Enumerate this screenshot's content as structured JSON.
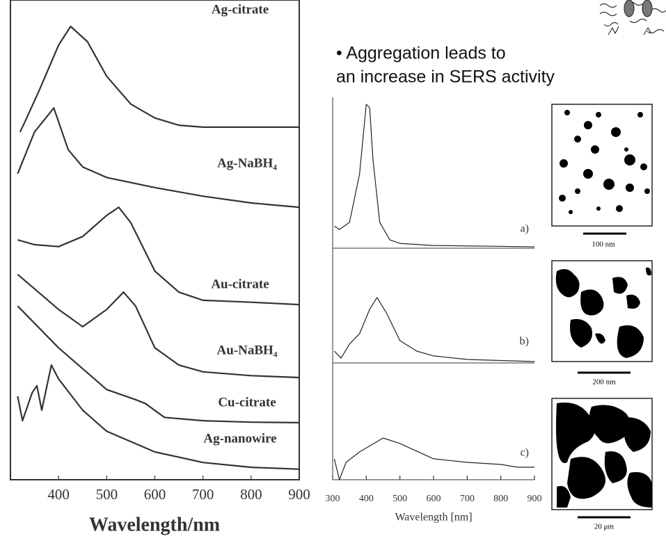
{
  "chart_data": [
    {
      "type": "line",
      "x_label": "Wavelength/nm",
      "color": "#333333",
      "xlim": [
        300,
        900
      ],
      "xticks": [
        400,
        500,
        600,
        700,
        800,
        900
      ],
      "ylim": [
        0,
        100
      ],
      "series": [
        {
          "name": "Ag-citrate",
          "x": [
            320,
            330,
            360,
            400,
            425,
            460,
            500,
            550,
            600,
            650,
            700,
            800,
            900
          ],
          "values": [
            72.5,
            74.6,
            81.2,
            90.6,
            94.5,
            91.3,
            84.1,
            78.3,
            75.4,
            73.9,
            73.5,
            73.5,
            73.5
          ]
        },
        {
          "name": "Ag-NaBH₄",
          "x": [
            315,
            350,
            390,
            420,
            450,
            500,
            600,
            700,
            800,
            900
          ],
          "values": [
            63.8,
            72.5,
            77.5,
            68.8,
            65.2,
            63.0,
            60.9,
            59.1,
            57.7,
            56.8
          ]
        },
        {
          "name": "Au-citrate",
          "x": [
            315,
            350,
            400,
            450,
            500,
            525,
            550,
            600,
            650,
            700,
            800,
            900
          ],
          "values": [
            50.0,
            49.0,
            48.6,
            50.7,
            55.1,
            56.8,
            53.6,
            43.5,
            39.1,
            37.4,
            37.0,
            36.5
          ]
        },
        {
          "name": "Au-NaBH₄",
          "x": [
            315,
            400,
            450,
            500,
            535,
            560,
            600,
            650,
            700,
            800,
            900
          ],
          "values": [
            42.8,
            35.5,
            31.9,
            35.5,
            39.1,
            36.2,
            27.5,
            23.9,
            22.5,
            21.7,
            21.3
          ]
        },
        {
          "name": "Cu-citrate",
          "x": [
            315,
            400,
            500,
            560,
            580,
            620,
            700,
            800,
            900
          ],
          "values": [
            36.2,
            27.5,
            18.8,
            16.7,
            15.9,
            13.0,
            12.3,
            12.0,
            11.9
          ]
        },
        {
          "name": "Ag-nanowire",
          "x": [
            315,
            325,
            345,
            355,
            365,
            385,
            400,
            450,
            500,
            600,
            700,
            800,
            900
          ],
          "values": [
            17.4,
            12.3,
            18.1,
            19.6,
            14.5,
            23.9,
            21.0,
            14.5,
            10.1,
            5.8,
            3.6,
            2.6,
            2.2
          ]
        }
      ]
    },
    {
      "type": "line",
      "x_label": "Wavelength [nm]",
      "color": "#222222",
      "xlim": [
        300,
        900
      ],
      "xticks": [
        300,
        400,
        500,
        600,
        700,
        800,
        900
      ],
      "ylim": [
        0,
        100
      ],
      "series": [
        {
          "name": "a)",
          "x": [
            305,
            320,
            350,
            380,
            400,
            410,
            420,
            440,
            470,
            500,
            600,
            900
          ],
          "values": [
            14.7,
            12.4,
            17.1,
            49.3,
            95.4,
            93.1,
            58.5,
            17.1,
            5.5,
            3.2,
            1.8,
            0.9
          ]
        },
        {
          "name": "b)",
          "x": [
            305,
            325,
            350,
            380,
            410,
            432,
            460,
            500,
            550,
            600,
            700,
            900
          ],
          "values": [
            10.3,
            4.2,
            16.4,
            25.5,
            46.7,
            57.0,
            43.6,
            19.4,
            10.3,
            6.1,
            3.0,
            1.2
          ]
        },
        {
          "name": "c)",
          "x": [
            305,
            320,
            340,
            380,
            450,
            500,
            600,
            700,
            800,
            850,
            900
          ],
          "values": [
            17.9,
            0,
            14.9,
            23.8,
            35.7,
            31.0,
            17.9,
            14.9,
            13.1,
            10.7,
            10.7
          ]
        }
      ]
    }
  ],
  "annotation": {
    "lines": [
      "• Aggregation leads to",
      "an increase in SERS activity"
    ]
  },
  "images": [
    {
      "scale_label": "100 nm"
    },
    {
      "scale_label": "200 nm"
    },
    {
      "scale_label": "20 μm"
    }
  ]
}
